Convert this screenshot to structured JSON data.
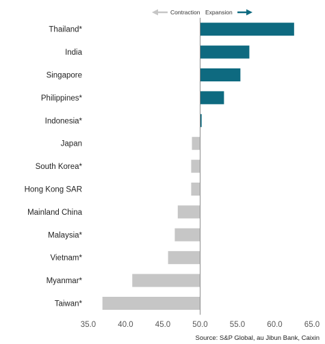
{
  "chart_data": {
    "type": "bar",
    "orientation": "horizontal",
    "baseline": 50.0,
    "categories": [
      "Thailand*",
      "India",
      "Singapore",
      "Philippines*",
      "Indonesia*",
      "Japan",
      "South Korea*",
      "Hong Kong SAR",
      "Mainland China",
      "Malaysia*",
      "Vietnam*",
      "Myanmar*",
      "Taiwan*"
    ],
    "values": [
      62.6,
      56.6,
      55.4,
      53.2,
      50.2,
      48.9,
      48.8,
      48.8,
      47.0,
      46.6,
      45.7,
      40.9,
      36.9
    ],
    "xlim": [
      35.0,
      65.0
    ],
    "xticks": [
      "35.0",
      "40.0",
      "45.0",
      "50.0",
      "55.0",
      "60.0",
      "65.0"
    ],
    "legend": {
      "contraction": "Contraction",
      "expansion": "Expansion"
    },
    "colors": {
      "expansion": "#0e6a80",
      "contraction": "#c6c6c6",
      "contraction_arrow": "#c6c6c6",
      "expansion_arrow": "#0e6a80",
      "axis": "#8a8a8a"
    },
    "source": "Source: S&P Global, au Jibun Bank, Caixin"
  }
}
